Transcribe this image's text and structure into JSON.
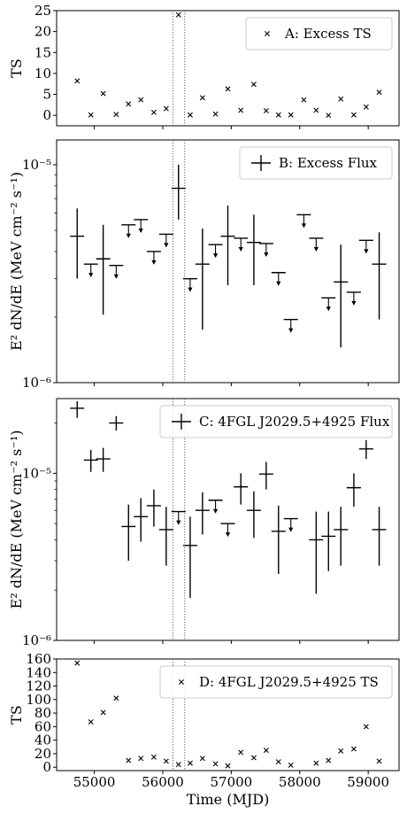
{
  "x_axis": {
    "label": "Time (MJD)",
    "range": [
      54450,
      59450
    ],
    "ticks": [
      55000,
      56000,
      57000,
      58000,
      59000
    ],
    "tick_labels": [
      "55000",
      "56000",
      "57000",
      "58000",
      "59000"
    ]
  },
  "vlines": [
    56150,
    56320
  ],
  "chart_data": [
    {
      "id": "A",
      "type": "scatter",
      "legend": "A: Excess TS",
      "ylabel": "TS",
      "yscale": "linear",
      "ylim": [
        -2.5,
        25
      ],
      "yticks": [
        0,
        5,
        10,
        15,
        20,
        25
      ],
      "ytick_labels": [
        "0",
        "5",
        "10",
        "15",
        "20",
        "25"
      ],
      "points": [
        {
          "x": 54750,
          "y": 8.2
        },
        {
          "x": 54950,
          "y": 0.1
        },
        {
          "x": 55130,
          "y": 5.2
        },
        {
          "x": 55320,
          "y": 0.2
        },
        {
          "x": 55500,
          "y": 2.7
        },
        {
          "x": 55680,
          "y": 3.7
        },
        {
          "x": 55870,
          "y": 0.7
        },
        {
          "x": 56050,
          "y": 1.6
        },
        {
          "x": 56230,
          "y": 24.0
        },
        {
          "x": 56400,
          "y": 0.1
        },
        {
          "x": 56580,
          "y": 4.2
        },
        {
          "x": 56770,
          "y": 0.3
        },
        {
          "x": 56950,
          "y": 6.3
        },
        {
          "x": 57140,
          "y": 1.2
        },
        {
          "x": 57330,
          "y": 7.4
        },
        {
          "x": 57510,
          "y": 1.1
        },
        {
          "x": 57690,
          "y": 0.1
        },
        {
          "x": 57870,
          "y": 0.1
        },
        {
          "x": 58060,
          "y": 3.7
        },
        {
          "x": 58240,
          "y": 1.2
        },
        {
          "x": 58420,
          "y": 0.0
        },
        {
          "x": 58600,
          "y": 3.9
        },
        {
          "x": 58790,
          "y": 0.1
        },
        {
          "x": 58970,
          "y": 2.0
        },
        {
          "x": 59160,
          "y": 5.5
        }
      ]
    },
    {
      "id": "B",
      "type": "errorbar",
      "legend": "B: Excess Flux",
      "ylabel": "E² dN/dE (MeV cm⁻² s⁻¹)",
      "yscale": "log",
      "ylim": [
        1e-06,
        1.3e-05
      ],
      "yticks": [
        1e-06,
        1e-05
      ],
      "ytick_labels": [
        "10⁻⁶",
        "10⁻⁵"
      ],
      "measurements": [
        {
          "x": 54750,
          "y": 4.7e-06,
          "lo": 3e-06,
          "hi": 6.3e-06
        },
        {
          "x": 55130,
          "y": 3.7e-06,
          "lo": 2.05e-06,
          "hi": 5.3e-06
        },
        {
          "x": 56230,
          "y": 7.8e-06,
          "lo": 5.6e-06,
          "hi": 1e-05
        },
        {
          "x": 56580,
          "y": 3.5e-06,
          "lo": 1.75e-06,
          "hi": 5.1e-06
        },
        {
          "x": 56950,
          "y": 4.7e-06,
          "lo": 2.8e-06,
          "hi": 6.5e-06
        },
        {
          "x": 57330,
          "y": 4.4e-06,
          "lo": 2.8e-06,
          "hi": 5.9e-06
        },
        {
          "x": 58600,
          "y": 2.9e-06,
          "lo": 1.45e-06,
          "hi": 4.3e-06
        },
        {
          "x": 59160,
          "y": 3.5e-06,
          "lo": 1.95e-06,
          "hi": 4.9e-06
        }
      ],
      "upper_limits": [
        {
          "x": 54950,
          "y": 3.5e-06
        },
        {
          "x": 55320,
          "y": 3.45e-06
        },
        {
          "x": 55500,
          "y": 5.3e-06
        },
        {
          "x": 55680,
          "y": 5.6e-06
        },
        {
          "x": 55870,
          "y": 4e-06
        },
        {
          "x": 56050,
          "y": 4.8e-06
        },
        {
          "x": 56400,
          "y": 3e-06
        },
        {
          "x": 56770,
          "y": 4.3e-06
        },
        {
          "x": 57140,
          "y": 4.6e-06
        },
        {
          "x": 57510,
          "y": 4.35e-06
        },
        {
          "x": 57690,
          "y": 3.2e-06
        },
        {
          "x": 57870,
          "y": 1.95e-06
        },
        {
          "x": 58060,
          "y": 5.9e-06
        },
        {
          "x": 58240,
          "y": 4.6e-06
        },
        {
          "x": 58420,
          "y": 2.45e-06
        },
        {
          "x": 58790,
          "y": 2.6e-06
        },
        {
          "x": 58970,
          "y": 4.5e-06
        }
      ]
    },
    {
      "id": "C",
      "type": "errorbar",
      "legend": "C: 4FGL J2029.5+4925 Flux",
      "ylabel": "E² dN/dE (MeV cm⁻² s⁻¹)",
      "yscale": "log",
      "ylim": [
        1e-06,
        2.8e-05
      ],
      "yticks": [
        1e-06,
        1e-05
      ],
      "ytick_labels": [
        "10⁻⁶",
        "10⁻⁵"
      ],
      "measurements": [
        {
          "x": 54750,
          "y": 2.45e-05,
          "lo": 2.15e-05,
          "hi": 2.7e-05
        },
        {
          "x": 54950,
          "y": 1.2e-05,
          "lo": 1.02e-05,
          "hi": 1.38e-05
        },
        {
          "x": 55130,
          "y": 1.22e-05,
          "lo": 1.02e-05,
          "hi": 1.42e-05
        },
        {
          "x": 55320,
          "y": 2e-05,
          "lo": 1.8e-05,
          "hi": 2.2e-05
        },
        {
          "x": 55500,
          "y": 4.8e-06,
          "lo": 3e-06,
          "hi": 6.5e-06
        },
        {
          "x": 55680,
          "y": 5.5e-06,
          "lo": 3.9e-06,
          "hi": 7.1e-06
        },
        {
          "x": 55870,
          "y": 6.4e-06,
          "lo": 4.8e-06,
          "hi": 8e-06
        },
        {
          "x": 56050,
          "y": 4.6e-06,
          "lo": 2.8e-06,
          "hi": 6.3e-06
        },
        {
          "x": 56400,
          "y": 3.7e-06,
          "lo": 1.8e-06,
          "hi": 5.5e-06
        },
        {
          "x": 56580,
          "y": 6e-06,
          "lo": 4.3e-06,
          "hi": 7.7e-06
        },
        {
          "x": 57140,
          "y": 8.3e-06,
          "lo": 6.5e-06,
          "hi": 1e-05
        },
        {
          "x": 57330,
          "y": 6e-06,
          "lo": 4.1e-06,
          "hi": 7.8e-06
        },
        {
          "x": 57510,
          "y": 9.9e-06,
          "lo": 8e-06,
          "hi": 1.17e-05
        },
        {
          "x": 57690,
          "y": 4.5e-06,
          "lo": 2.5e-06,
          "hi": 6.4e-06
        },
        {
          "x": 58240,
          "y": 4e-06,
          "lo": 1.9e-06,
          "hi": 5.9e-06
        },
        {
          "x": 58420,
          "y": 4.2e-06,
          "lo": 2.6e-06,
          "hi": 5.9e-06
        },
        {
          "x": 58600,
          "y": 4.6e-06,
          "lo": 2.8e-06,
          "hi": 6.3e-06
        },
        {
          "x": 58790,
          "y": 8.2e-06,
          "lo": 6.3e-06,
          "hi": 1e-05
        },
        {
          "x": 58970,
          "y": 1.4e-05,
          "lo": 1.22e-05,
          "hi": 1.58e-05
        },
        {
          "x": 59160,
          "y": 4.6e-06,
          "lo": 2.8e-06,
          "hi": 6.3e-06
        }
      ],
      "upper_limits": [
        {
          "x": 56230,
          "y": 5.9e-06
        },
        {
          "x": 56770,
          "y": 6.9e-06
        },
        {
          "x": 56950,
          "y": 5e-06
        },
        {
          "x": 57870,
          "y": 5.35e-06
        }
      ]
    },
    {
      "id": "D",
      "type": "scatter",
      "legend": "D: 4FGL J2029.5+4925 TS",
      "ylabel": "TS",
      "yscale": "linear",
      "ylim": [
        -5,
        160
      ],
      "yticks": [
        0,
        20,
        40,
        60,
        80,
        100,
        120,
        140,
        160
      ],
      "ytick_labels": [
        "0",
        "20",
        "40",
        "60",
        "80",
        "100",
        "120",
        "140",
        "160"
      ],
      "points": [
        {
          "x": 54750,
          "y": 154
        },
        {
          "x": 54950,
          "y": 67
        },
        {
          "x": 55130,
          "y": 81
        },
        {
          "x": 55320,
          "y": 102
        },
        {
          "x": 55500,
          "y": 10
        },
        {
          "x": 55680,
          "y": 13
        },
        {
          "x": 55870,
          "y": 15
        },
        {
          "x": 56050,
          "y": 9
        },
        {
          "x": 56230,
          "y": 4
        },
        {
          "x": 56400,
          "y": 6
        },
        {
          "x": 56580,
          "y": 13
        },
        {
          "x": 56770,
          "y": 5
        },
        {
          "x": 56950,
          "y": 2
        },
        {
          "x": 57140,
          "y": 22
        },
        {
          "x": 57330,
          "y": 14
        },
        {
          "x": 57510,
          "y": 25
        },
        {
          "x": 57690,
          "y": 8
        },
        {
          "x": 57870,
          "y": 3
        },
        {
          "x": 58240,
          "y": 6
        },
        {
          "x": 58420,
          "y": 10
        },
        {
          "x": 58600,
          "y": 24
        },
        {
          "x": 58790,
          "y": 27
        },
        {
          "x": 58970,
          "y": 60
        },
        {
          "x": 59160,
          "y": 9
        }
      ]
    }
  ]
}
